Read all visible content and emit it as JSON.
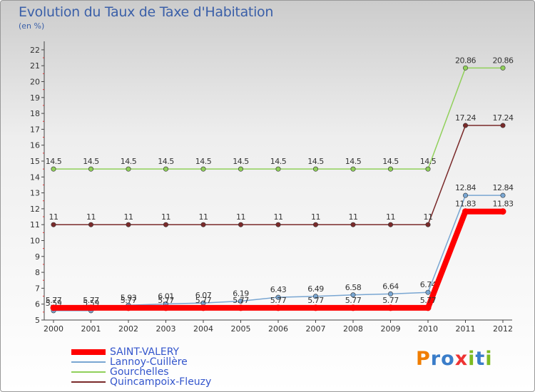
{
  "title": "Evolution du Taux de Taxe d'Habitation",
  "subtitle": "(en %)",
  "logo": {
    "text": "Proxiti",
    "letters": [
      "P",
      "r",
      "o",
      "x",
      "i",
      "t",
      "i"
    ],
    "colors": [
      "#f07d00",
      "#3a7dc9",
      "#3a7dc9",
      "#ee3333",
      "#7dbb22",
      "#3a7dc9",
      "#7dbb22"
    ]
  },
  "chart_data": {
    "type": "line",
    "categories": [
      "2000",
      "2001",
      "2002",
      "2003",
      "2004",
      "2005",
      "2006",
      "2007",
      "2008",
      "2009",
      "2010",
      "2011",
      "2012"
    ],
    "y_ticks": [
      "5",
      "6",
      "7",
      "8",
      "9",
      "10",
      "11",
      "12",
      "13",
      "14",
      "15",
      "16",
      "17",
      "18",
      "19",
      "20",
      "21",
      "22"
    ],
    "ylim": [
      5,
      22
    ],
    "grid": false,
    "legend": "bottom-left",
    "series": [
      {
        "name": "Gourchelles",
        "color": "#90d05a",
        "line_width": 1.5,
        "values": [
          14.5,
          14.5,
          14.5,
          14.5,
          14.5,
          14.5,
          14.5,
          14.5,
          14.5,
          14.5,
          14.5,
          20.86,
          20.86
        ],
        "labels": [
          "14.5",
          "14.5",
          "14.5",
          "14.5",
          "14.5",
          "14.5",
          "14.5",
          "14.5",
          "14.5",
          "14.5",
          "14.5",
          "20.86",
          "20.86"
        ]
      },
      {
        "name": "Quincampoix-Fleuzy",
        "color": "#7a2a2a",
        "line_width": 1.5,
        "values": [
          11,
          11,
          11,
          11,
          11,
          11,
          11,
          11,
          11,
          11,
          11,
          17.24,
          17.24
        ],
        "labels": [
          "11",
          "11",
          "11",
          "11",
          "11",
          "11",
          "11",
          "11",
          "11",
          "11",
          "11",
          "17.24",
          "17.24"
        ]
      },
      {
        "name": "Lannoy-Cuillère",
        "color": "#79a6d2",
        "line_width": 1.5,
        "values": [
          5.59,
          5.59,
          5.93,
          6.01,
          6.07,
          6.19,
          6.43,
          6.49,
          6.58,
          6.64,
          6.74,
          12.84,
          12.84
        ],
        "labels": [
          "5.59",
          "5.59",
          "5.93",
          "6.01",
          "6.07",
          "6.19",
          "6.43",
          "6.49",
          "6.58",
          "6.64",
          "6.74",
          "12.84",
          "12.84"
        ]
      },
      {
        "name": "SAINT-VALERY",
        "color": "#ff0000",
        "line_width": 8,
        "values": [
          5.77,
          5.77,
          5.77,
          5.77,
          5.77,
          5.77,
          5.77,
          5.77,
          5.77,
          5.77,
          5.77,
          11.83,
          11.83
        ],
        "labels": [
          "5.77",
          "5.77",
          "5.77",
          "5.77",
          "5.77",
          "5.77",
          "5.77",
          "5.77",
          "5.77",
          "5.77",
          "5.77",
          "11.83",
          "11.83"
        ]
      }
    ]
  }
}
